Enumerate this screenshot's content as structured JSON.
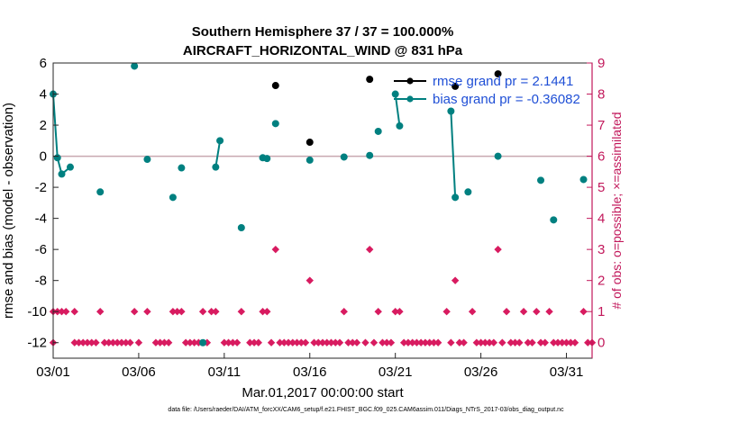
{
  "chart_data": {
    "type": "line",
    "title": "Southern Hemisphere 37 / 37 = 100.000%",
    "subtitle": "AIRCRAFT_HORIZONTAL_WIND @ 831 hPa",
    "ylabel": "rmse and bias (model - observation)",
    "ylabel_right": "# of obs: o=possible; ×=assimilated",
    "xlabel": "Mar.01,2017 00:00:00 start",
    "footnote": "data file: /Users/raeder/DAI/ATM_forcXX/CAM6_setup/f.e21.FHIST_BGC.f09_025.CAM6assim.011/Diags_NTrS_2017-03/obs_diag_output.nc",
    "xlim": [
      0,
      31.5
    ],
    "ylim": [
      -13,
      6
    ],
    "ylim_right": [
      -0.5,
      9
    ],
    "x_ticks": [
      0,
      5,
      10,
      15,
      20,
      25,
      30
    ],
    "x_tick_labels": [
      "03/01",
      "03/06",
      "03/11",
      "03/16",
      "03/21",
      "03/26",
      "03/31"
    ],
    "y_ticks": [
      -12,
      -10,
      -8,
      -6,
      -4,
      -2,
      0,
      2,
      4,
      6
    ],
    "y_tick_labels": [
      "-12",
      "-10",
      "-8",
      "-6",
      "-4",
      "-2",
      "0",
      "2",
      "4",
      "6"
    ],
    "y_ticks_right": [
      0,
      1,
      2,
      3,
      4,
      5,
      6,
      7,
      8,
      9
    ],
    "y_tick_labels_right": [
      "0",
      "1",
      "2",
      "3",
      "4",
      "5",
      "6",
      "7",
      "8",
      "9"
    ],
    "zero_line": 0,
    "legend": [
      {
        "label": "rmse grand pr = 2.1441",
        "color": "#000000"
      },
      {
        "label": "bias grand pr = -0.36082",
        "color": "#008080"
      }
    ],
    "series": [
      {
        "name": "rmse",
        "color": "#000000",
        "points": [
          [
            13.0,
            4.55
          ],
          [
            15.0,
            0.9
          ],
          [
            18.5,
            4.95
          ],
          [
            23.5,
            4.5
          ],
          [
            26.0,
            5.3
          ]
        ]
      },
      {
        "name": "bias",
        "color": "#008080",
        "segments": [
          [
            [
              0.0,
              4.0
            ],
            [
              0.25,
              -0.1
            ],
            [
              0.5,
              -1.15
            ],
            [
              1.0,
              -0.7
            ]
          ],
          [
            [
              9.5,
              -0.7
            ],
            [
              9.75,
              1.0
            ]
          ],
          [
            [
              20.0,
              4.0
            ],
            [
              20.25,
              1.95
            ]
          ],
          [
            [
              23.25,
              2.9
            ],
            [
              23.5,
              -2.65
            ]
          ]
        ],
        "points": [
          [
            0.0,
            4.0
          ],
          [
            0.25,
            -0.1
          ],
          [
            0.5,
            -1.15
          ],
          [
            1.0,
            -0.7
          ],
          [
            2.75,
            -2.3
          ],
          [
            4.75,
            5.8
          ],
          [
            5.5,
            -0.2
          ],
          [
            7.0,
            -2.65
          ],
          [
            7.5,
            -0.75
          ],
          [
            8.75,
            -12.0
          ],
          [
            9.5,
            -0.7
          ],
          [
            9.75,
            1.0
          ],
          [
            11.0,
            -4.6
          ],
          [
            12.25,
            -0.1
          ],
          [
            12.5,
            -0.15
          ],
          [
            13.0,
            2.1
          ],
          [
            15.0,
            -0.25
          ],
          [
            17.0,
            -0.05
          ],
          [
            18.5,
            0.05
          ],
          [
            19.0,
            1.6
          ],
          [
            20.0,
            4.0
          ],
          [
            20.25,
            1.95
          ],
          [
            23.25,
            2.9
          ],
          [
            23.5,
            -2.65
          ],
          [
            24.25,
            -2.3
          ],
          [
            26.0,
            0.0
          ],
          [
            28.5,
            -1.55
          ],
          [
            29.25,
            -4.1
          ],
          [
            31.0,
            -1.5
          ]
        ]
      }
    ],
    "obs_counts": {
      "name": "# of obs",
      "color": "#d81b60",
      "points": [
        [
          0.0,
          0
        ],
        [
          0.0,
          1
        ],
        [
          0.25,
          1
        ],
        [
          0.5,
          1
        ],
        [
          0.75,
          1
        ],
        [
          1.25,
          1
        ],
        [
          1.25,
          0
        ],
        [
          1.5,
          0
        ],
        [
          1.75,
          0
        ],
        [
          2.0,
          0
        ],
        [
          2.25,
          0
        ],
        [
          2.5,
          0
        ],
        [
          2.75,
          1
        ],
        [
          3.0,
          0
        ],
        [
          3.25,
          0
        ],
        [
          3.5,
          0
        ],
        [
          3.75,
          0
        ],
        [
          4.0,
          0
        ],
        [
          4.25,
          0
        ],
        [
          4.5,
          0
        ],
        [
          4.75,
          1
        ],
        [
          5.0,
          0
        ],
        [
          5.5,
          1
        ],
        [
          6.0,
          0
        ],
        [
          6.25,
          0
        ],
        [
          6.5,
          0
        ],
        [
          6.75,
          0
        ],
        [
          7.0,
          1
        ],
        [
          7.25,
          1
        ],
        [
          7.5,
          1
        ],
        [
          7.75,
          0
        ],
        [
          8.0,
          0
        ],
        [
          8.25,
          0
        ],
        [
          8.5,
          0
        ],
        [
          8.75,
          1
        ],
        [
          9.0,
          0
        ],
        [
          9.25,
          1
        ],
        [
          9.5,
          1
        ],
        [
          10.0,
          0
        ],
        [
          10.25,
          0
        ],
        [
          10.5,
          0
        ],
        [
          10.75,
          0
        ],
        [
          11.0,
          1
        ],
        [
          11.5,
          0
        ],
        [
          11.75,
          0
        ],
        [
          12.0,
          0
        ],
        [
          12.25,
          1
        ],
        [
          12.5,
          1
        ],
        [
          12.75,
          0
        ],
        [
          13.0,
          3
        ],
        [
          13.25,
          0
        ],
        [
          13.5,
          0
        ],
        [
          13.75,
          0
        ],
        [
          14.0,
          0
        ],
        [
          14.25,
          0
        ],
        [
          14.5,
          0
        ],
        [
          14.75,
          0
        ],
        [
          15.0,
          2
        ],
        [
          15.25,
          0
        ],
        [
          15.5,
          0
        ],
        [
          15.75,
          0
        ],
        [
          16.0,
          0
        ],
        [
          16.25,
          0
        ],
        [
          16.5,
          0
        ],
        [
          16.75,
          0
        ],
        [
          17.0,
          1
        ],
        [
          17.25,
          0
        ],
        [
          17.5,
          0
        ],
        [
          17.75,
          0
        ],
        [
          18.25,
          0
        ],
        [
          18.5,
          3
        ],
        [
          18.75,
          0
        ],
        [
          19.0,
          1
        ],
        [
          19.25,
          0
        ],
        [
          19.5,
          0
        ],
        [
          19.75,
          0
        ],
        [
          20.0,
          1
        ],
        [
          20.25,
          1
        ],
        [
          20.5,
          0
        ],
        [
          20.75,
          0
        ],
        [
          21.0,
          0
        ],
        [
          21.25,
          0
        ],
        [
          21.5,
          0
        ],
        [
          21.75,
          0
        ],
        [
          22.0,
          0
        ],
        [
          22.25,
          0
        ],
        [
          22.5,
          0
        ],
        [
          23.0,
          1
        ],
        [
          23.25,
          0
        ],
        [
          23.5,
          2
        ],
        [
          23.75,
          0
        ],
        [
          24.0,
          0
        ],
        [
          24.5,
          1
        ],
        [
          24.75,
          0
        ],
        [
          25.0,
          0
        ],
        [
          25.25,
          0
        ],
        [
          25.5,
          0
        ],
        [
          25.75,
          0
        ],
        [
          26.0,
          3
        ],
        [
          26.25,
          0
        ],
        [
          26.5,
          1
        ],
        [
          26.75,
          0
        ],
        [
          27.0,
          0
        ],
        [
          27.25,
          0
        ],
        [
          27.5,
          1
        ],
        [
          27.75,
          0
        ],
        [
          28.0,
          0
        ],
        [
          28.25,
          1
        ],
        [
          28.5,
          0
        ],
        [
          28.75,
          0
        ],
        [
          29.0,
          1
        ],
        [
          29.25,
          0
        ],
        [
          29.5,
          0
        ],
        [
          29.75,
          0
        ],
        [
          30.0,
          0
        ],
        [
          30.25,
          0
        ],
        [
          30.5,
          0
        ],
        [
          31.0,
          1
        ],
        [
          31.25,
          0
        ],
        [
          31.5,
          0
        ]
      ]
    }
  }
}
